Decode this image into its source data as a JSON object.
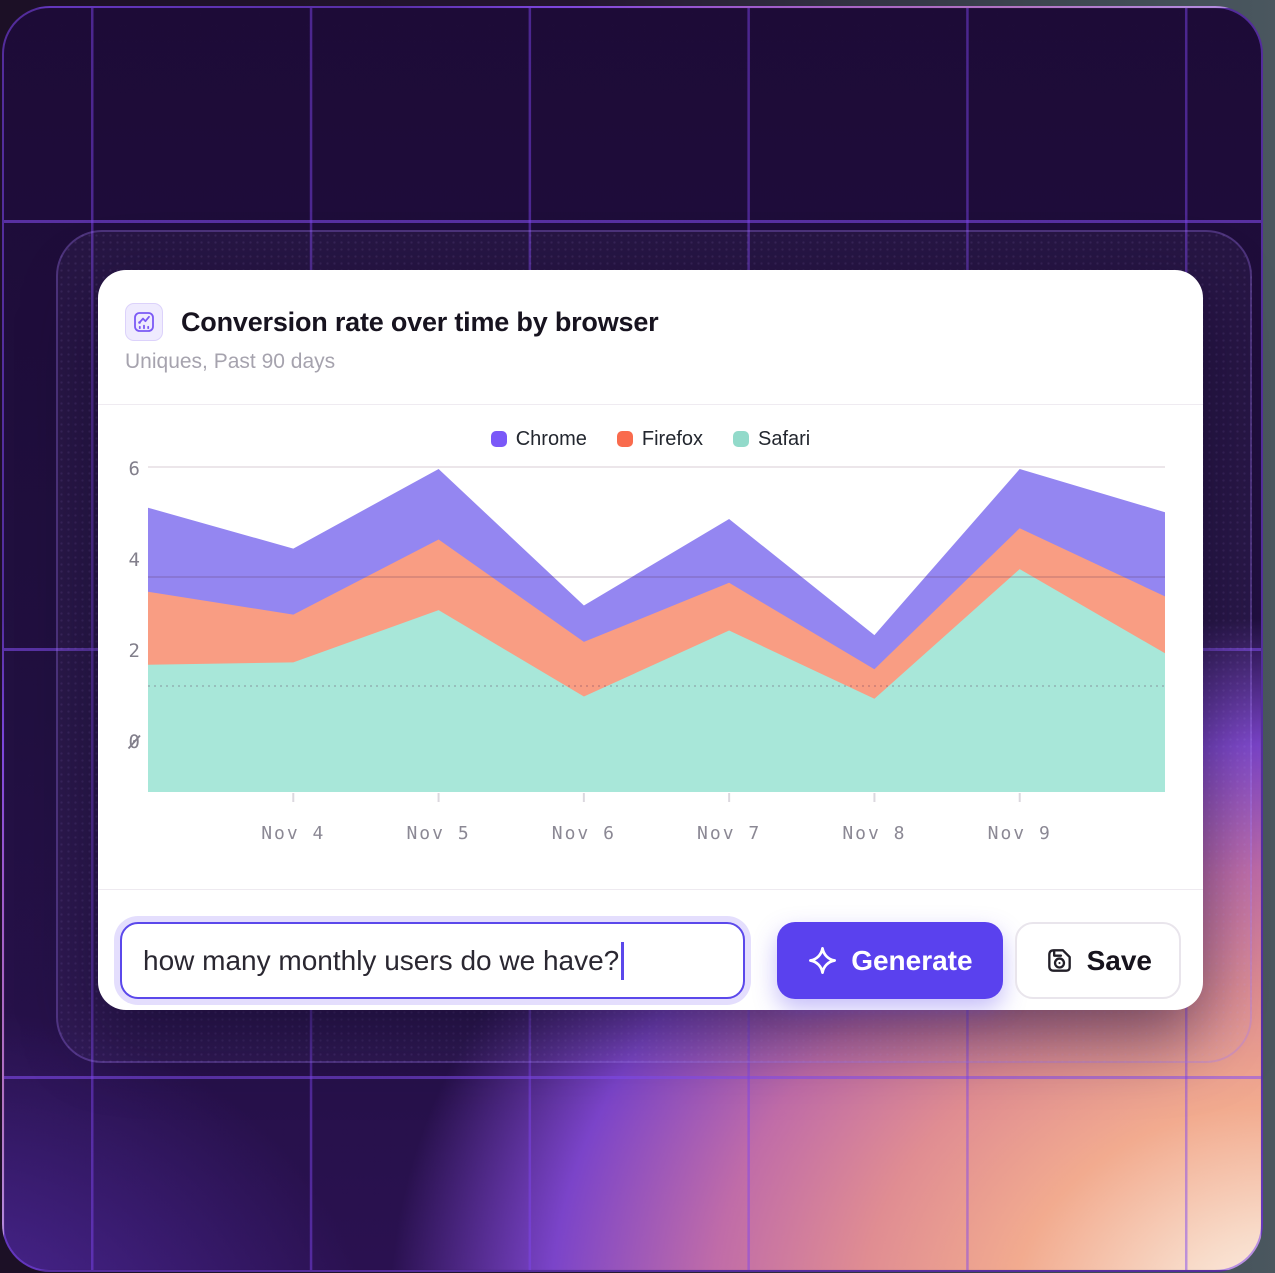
{
  "card": {
    "title": "Conversion rate over time by browser",
    "subtitle": "Uniques, Past 90 days",
    "header_icon": "line-chart-icon"
  },
  "chart_data": {
    "type": "area",
    "stacked": true,
    "title": "Conversion rate over time by browser",
    "x_tick_labels": [
      "Nov 4",
      "Nov 5",
      "Nov 6",
      "Nov 7",
      "Nov 8",
      "Nov 9"
    ],
    "x_tick_positions": [
      1,
      2,
      3,
      4,
      5,
      6
    ],
    "y_ticks": [
      0,
      2,
      4,
      6
    ],
    "y_tick_labels": [
      "0",
      "2",
      "4",
      "6"
    ],
    "ylim": [
      -1.1,
      6.4
    ],
    "grid": "horizontal-only",
    "legend_position": "top-center",
    "stack_bottom_to_top": [
      "Safari",
      "Firefox",
      "Chrome"
    ],
    "series": [
      {
        "name": "Chrome",
        "color": "#7a58f8",
        "area_color": "#9486f1",
        "values": [
          1.85,
          1.45,
          1.55,
          0.8,
          1.4,
          0.75,
          1.3,
          1.85
        ]
      },
      {
        "name": "Firefox",
        "color": "#f96b4d",
        "area_color": "#f99d83",
        "values": [
          1.6,
          1.05,
          1.55,
          1.2,
          1.05,
          0.65,
          0.9,
          1.25
        ]
      },
      {
        "name": "Safari",
        "color": "#92daca",
        "area_color": "#a8e7d9",
        "values": [
          1.7,
          1.75,
          2.9,
          1.0,
          2.45,
          0.95,
          3.8,
          1.95
        ]
      }
    ]
  },
  "controls": {
    "input_value": "how many monthly users do we have?",
    "generate_label": "Generate",
    "save_label": "Save"
  },
  "colors": {
    "accent": "#5a41ee",
    "input_border": "#5b48eb",
    "card_bg": "#ffffff",
    "grid_line": "#7e44ee",
    "bg_dark": "#211040"
  }
}
